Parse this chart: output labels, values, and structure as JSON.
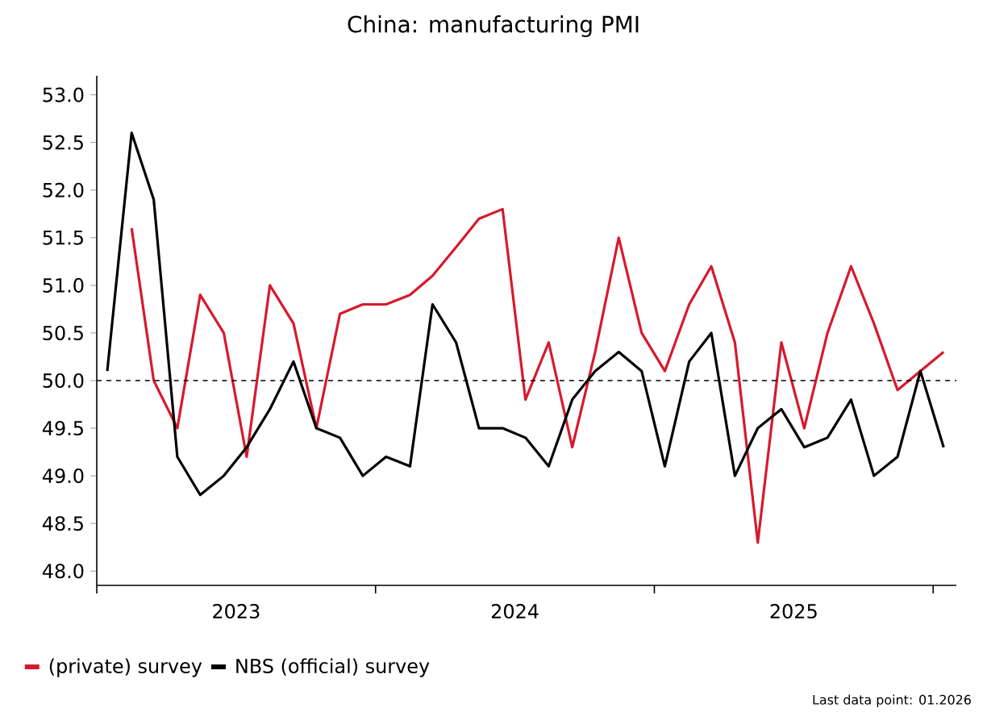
{
  "chart_data": {
    "type": "line",
    "title": "China: manufacturing PMI",
    "x": [
      "2023-01-15",
      "2023-02-15",
      "2023-03-15",
      "2023-04-15",
      "2023-05-15",
      "2023-06-15",
      "2023-07-15",
      "2023-08-15",
      "2023-09-15",
      "2023-10-15",
      "2023-11-15",
      "2023-12-15",
      "2024-01-15",
      "2024-02-15",
      "2024-03-15",
      "2024-04-15",
      "2024-05-15",
      "2024-06-15",
      "2024-07-15",
      "2024-08-15",
      "2024-09-15",
      "2024-10-15",
      "2024-11-15",
      "2024-12-15",
      "2025-01-15",
      "2025-02-15",
      "2025-03-15",
      "2025-04-15",
      "2025-05-15",
      "2025-06-15",
      "2025-07-15",
      "2025-08-15",
      "2025-09-15",
      "2025-10-15",
      "2025-11-15",
      "2025-12-15",
      "2026-01-15"
    ],
    "series": [
      {
        "name": "(private) survey",
        "color": "#d7192d",
        "values": [
          null,
          51.6,
          50.0,
          49.5,
          50.9,
          50.5,
          49.2,
          51.0,
          50.6,
          49.5,
          50.7,
          50.8,
          50.8,
          50.9,
          51.1,
          51.4,
          51.7,
          51.8,
          49.8,
          50.4,
          49.3,
          50.3,
          51.5,
          50.5,
          50.1,
          50.8,
          51.2,
          50.4,
          48.3,
          50.4,
          49.5,
          50.5,
          51.2,
          50.6,
          49.9,
          50.1,
          50.3
        ]
      },
      {
        "name": "NBS (official) survey",
        "color": "#000000",
        "values": [
          50.1,
          52.6,
          51.9,
          49.2,
          48.8,
          49.0,
          49.3,
          49.7,
          50.2,
          49.5,
          49.4,
          49.0,
          49.2,
          49.1,
          50.8,
          50.4,
          49.5,
          49.5,
          49.4,
          49.1,
          49.8,
          50.1,
          50.3,
          50.1,
          49.1,
          50.2,
          50.5,
          49.0,
          49.5,
          49.7,
          49.3,
          49.4,
          49.8,
          49.0,
          49.2,
          50.1,
          49.3
        ]
      }
    ],
    "xlim": [
      "2023-01-01",
      "2026-02-01"
    ],
    "xticks": [
      {
        "value": "2023-01-01",
        "label": null
      },
      {
        "value": "2023-07-01",
        "label": "2023"
      },
      {
        "value": "2024-01-01",
        "label": null
      },
      {
        "value": "2024-07-01",
        "label": "2024"
      },
      {
        "value": "2025-01-01",
        "label": null
      },
      {
        "value": "2025-07-01",
        "label": "2025"
      },
      {
        "value": "2026-01-01",
        "label": null
      }
    ],
    "ylim": [
      47.85,
      53.2
    ],
    "yticks": [
      {
        "value": 48,
        "label": "48.0"
      },
      {
        "value": 48.5,
        "label": "48.5"
      },
      {
        "value": 49,
        "label": "49.0"
      },
      {
        "value": 49.5,
        "label": "49.5"
      },
      {
        "value": 50,
        "label": "50.0"
      },
      {
        "value": 50.5,
        "label": "50.5"
      },
      {
        "value": 51,
        "label": "51.0"
      },
      {
        "value": 51.5,
        "label": "51.5"
      },
      {
        "value": 52,
        "label": "52.0"
      },
      {
        "value": 52.5,
        "label": "52.5"
      },
      {
        "value": 53,
        "label": "53.0"
      }
    ],
    "ref_lines": [
      {
        "axis": "y",
        "value": 50,
        "color": "#000000",
        "line_style": "dashed"
      }
    ],
    "legend": "bottom",
    "grid": false,
    "marker": "none",
    "line_style": "solid",
    "annotations": [
      "Last data point: 01.2026"
    ]
  }
}
